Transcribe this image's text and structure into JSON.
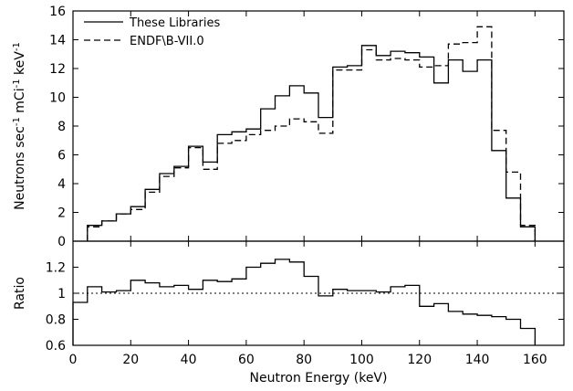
{
  "chart_data": [
    {
      "type": "line",
      "step": true,
      "xlabel": "",
      "ylabel": "Neutrons sec",
      "ylabel_parts": [
        "Neutrons sec",
        "-1",
        " mCi",
        "-1",
        " keV",
        "-1"
      ],
      "xlim": [
        0,
        170
      ],
      "ylim": [
        0,
        16
      ],
      "xticks": [
        "0",
        "20",
        "40",
        "60",
        "80",
        "100",
        "120",
        "140",
        "160"
      ],
      "xtick_values": [
        0,
        20,
        40,
        60,
        80,
        100,
        120,
        140,
        160
      ],
      "yticks": [
        "0",
        "2",
        "4",
        "6",
        "8",
        "10",
        "12",
        "14",
        "16"
      ],
      "ytick_values": [
        0,
        2,
        4,
        6,
        8,
        10,
        12,
        14,
        16
      ],
      "legend_position": "top-left",
      "bin_edges": [
        5,
        10,
        15,
        20,
        25,
        30,
        35,
        40,
        45,
        50,
        55,
        60,
        65,
        70,
        75,
        80,
        85,
        90,
        95,
        100,
        105,
        110,
        115,
        120,
        125,
        130,
        135,
        140,
        145,
        150,
        155,
        160
      ],
      "series": [
        {
          "name": "These Libraries",
          "style": "solid",
          "values": [
            1.1,
            1.4,
            1.9,
            2.4,
            3.6,
            4.7,
            5.2,
            6.6,
            5.5,
            7.4,
            7.6,
            7.8,
            9.2,
            10.1,
            10.8,
            10.3,
            8.6,
            12.1,
            12.2,
            13.6,
            12.9,
            13.2,
            13.1,
            12.8,
            11.0,
            12.6,
            11.8,
            12.6,
            6.3,
            3.0,
            1.0
          ]
        },
        {
          "name": "ENDF\\B-VII.0",
          "style": "dashed",
          "values": [
            1.0,
            1.4,
            1.9,
            2.2,
            3.4,
            4.5,
            5.1,
            6.5,
            5.0,
            6.8,
            7.0,
            7.4,
            7.7,
            8.0,
            8.5,
            8.3,
            7.5,
            11.9,
            11.9,
            13.3,
            12.6,
            12.7,
            12.6,
            12.1,
            12.2,
            13.7,
            13.8,
            14.9,
            7.7,
            4.8,
            1.1
          ]
        }
      ]
    },
    {
      "type": "line",
      "step": true,
      "xlabel": "Neutron Energy (keV)",
      "ylabel": "Ratio",
      "xlim": [
        0,
        170
      ],
      "ylim": [
        0.6,
        1.4
      ],
      "xticks": [
        "0",
        "20",
        "40",
        "60",
        "80",
        "100",
        "120",
        "140",
        "160"
      ],
      "xtick_values": [
        0,
        20,
        40,
        60,
        80,
        100,
        120,
        140,
        160
      ],
      "yticks": [
        "0.6",
        "0.8",
        "1",
        "1.2"
      ],
      "ytick_values": [
        0.6,
        0.8,
        1.0,
        1.2
      ],
      "reference_line": 1.0,
      "bin_edges": [
        0,
        5,
        10,
        15,
        20,
        25,
        30,
        35,
        40,
        45,
        50,
        55,
        60,
        65,
        70,
        75,
        80,
        85,
        90,
        95,
        100,
        105,
        110,
        115,
        120,
        125,
        130,
        135,
        140,
        145,
        150,
        155,
        160
      ],
      "series": [
        {
          "style": "solid",
          "values": [
            0.93,
            1.05,
            1.01,
            1.02,
            1.1,
            1.08,
            1.05,
            1.06,
            1.03,
            1.1,
            1.09,
            1.11,
            1.2,
            1.23,
            1.26,
            1.24,
            1.13,
            0.98,
            1.03,
            1.02,
            1.02,
            1.01,
            1.05,
            1.06,
            0.9,
            0.92,
            0.86,
            0.84,
            0.83,
            0.82,
            0.8,
            0.73
          ]
        }
      ]
    }
  ]
}
